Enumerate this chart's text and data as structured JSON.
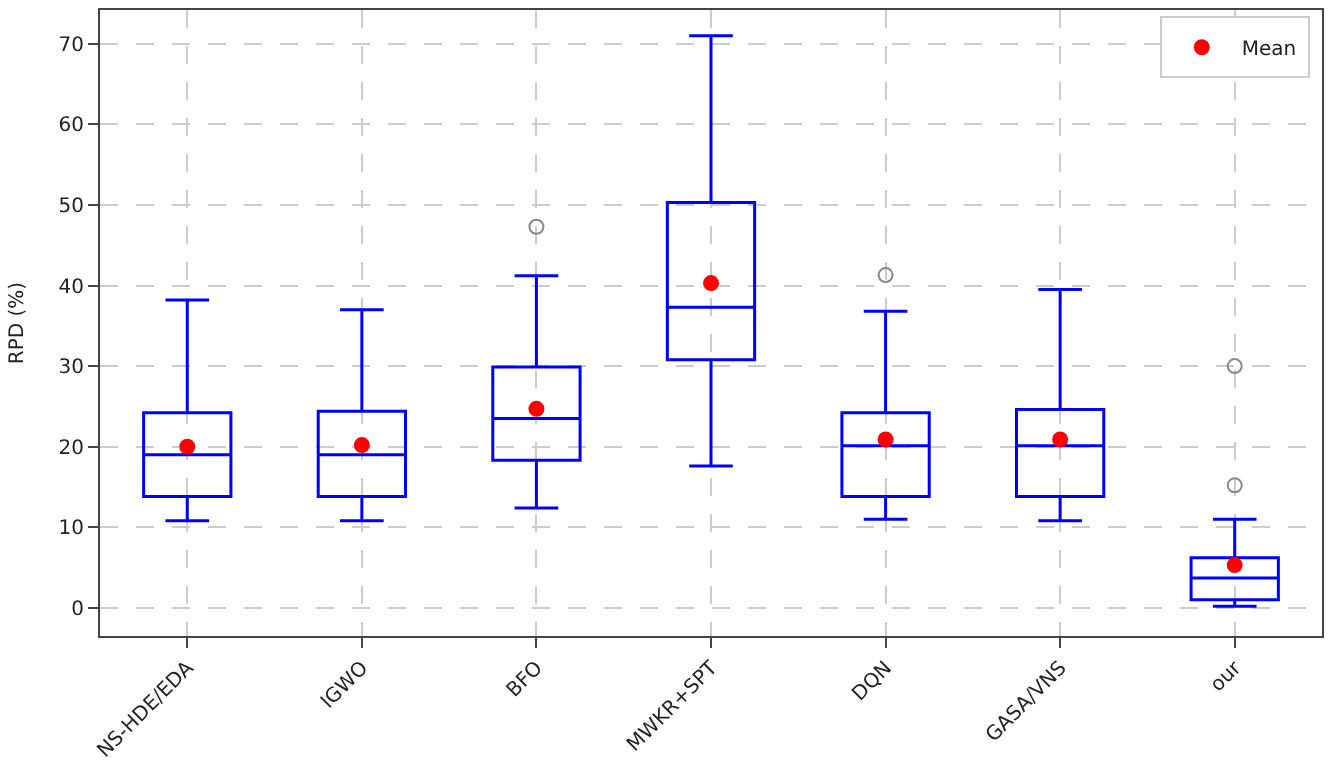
{
  "chart_data": {
    "type": "box",
    "ylabel": "RPD (%)",
    "categories": [
      "NS-HDE/EDA",
      "IGWO",
      "BFO",
      "MWKR+SPT",
      "DQN",
      "GASA/VNS",
      "our"
    ],
    "series": [
      {
        "color": "#0000ff",
        "boxes": [
          {
            "low": 10.8,
            "q1": 13.8,
            "median": 19,
            "q3": 24.2,
            "high": 38.2
          },
          {
            "low": 10.8,
            "q1": 13.8,
            "median": 19,
            "q3": 24.4,
            "high": 37
          },
          {
            "low": 12.4,
            "q1": 18.3,
            "median": 23.5,
            "q3": 29.9,
            "high": 41.2,
            "outliers": [
              47.3
            ]
          },
          {
            "low": 17.6,
            "q1": 30.8,
            "median": 37.3,
            "q3": 50.3,
            "high": 71
          },
          {
            "low": 11,
            "q1": 13.8,
            "median": 20.1,
            "q3": 24.2,
            "high": 36.8,
            "outliers": [
              41.3
            ]
          },
          {
            "low": 10.8,
            "q1": 13.8,
            "median": 20.1,
            "q3": 24.6,
            "high": 39.5
          },
          {
            "low": 0.2,
            "q1": 1,
            "median": 3.7,
            "q3": 6.2,
            "high": 11,
            "outliers": [
              15.2,
              30
            ]
          }
        ]
      },
      {
        "name": "Mean",
        "type": "scatter",
        "color": "#ff0000",
        "values": [
          20,
          20.2,
          24.7,
          40.3,
          20.9,
          20.9,
          5.3
        ]
      }
    ],
    "ylim": [
      -3.5,
      74.2
    ],
    "yticks": [
      0,
      10,
      20,
      30,
      40,
      50,
      60,
      70
    ],
    "grid": true,
    "legend": "top right",
    "marker": "circle"
  }
}
